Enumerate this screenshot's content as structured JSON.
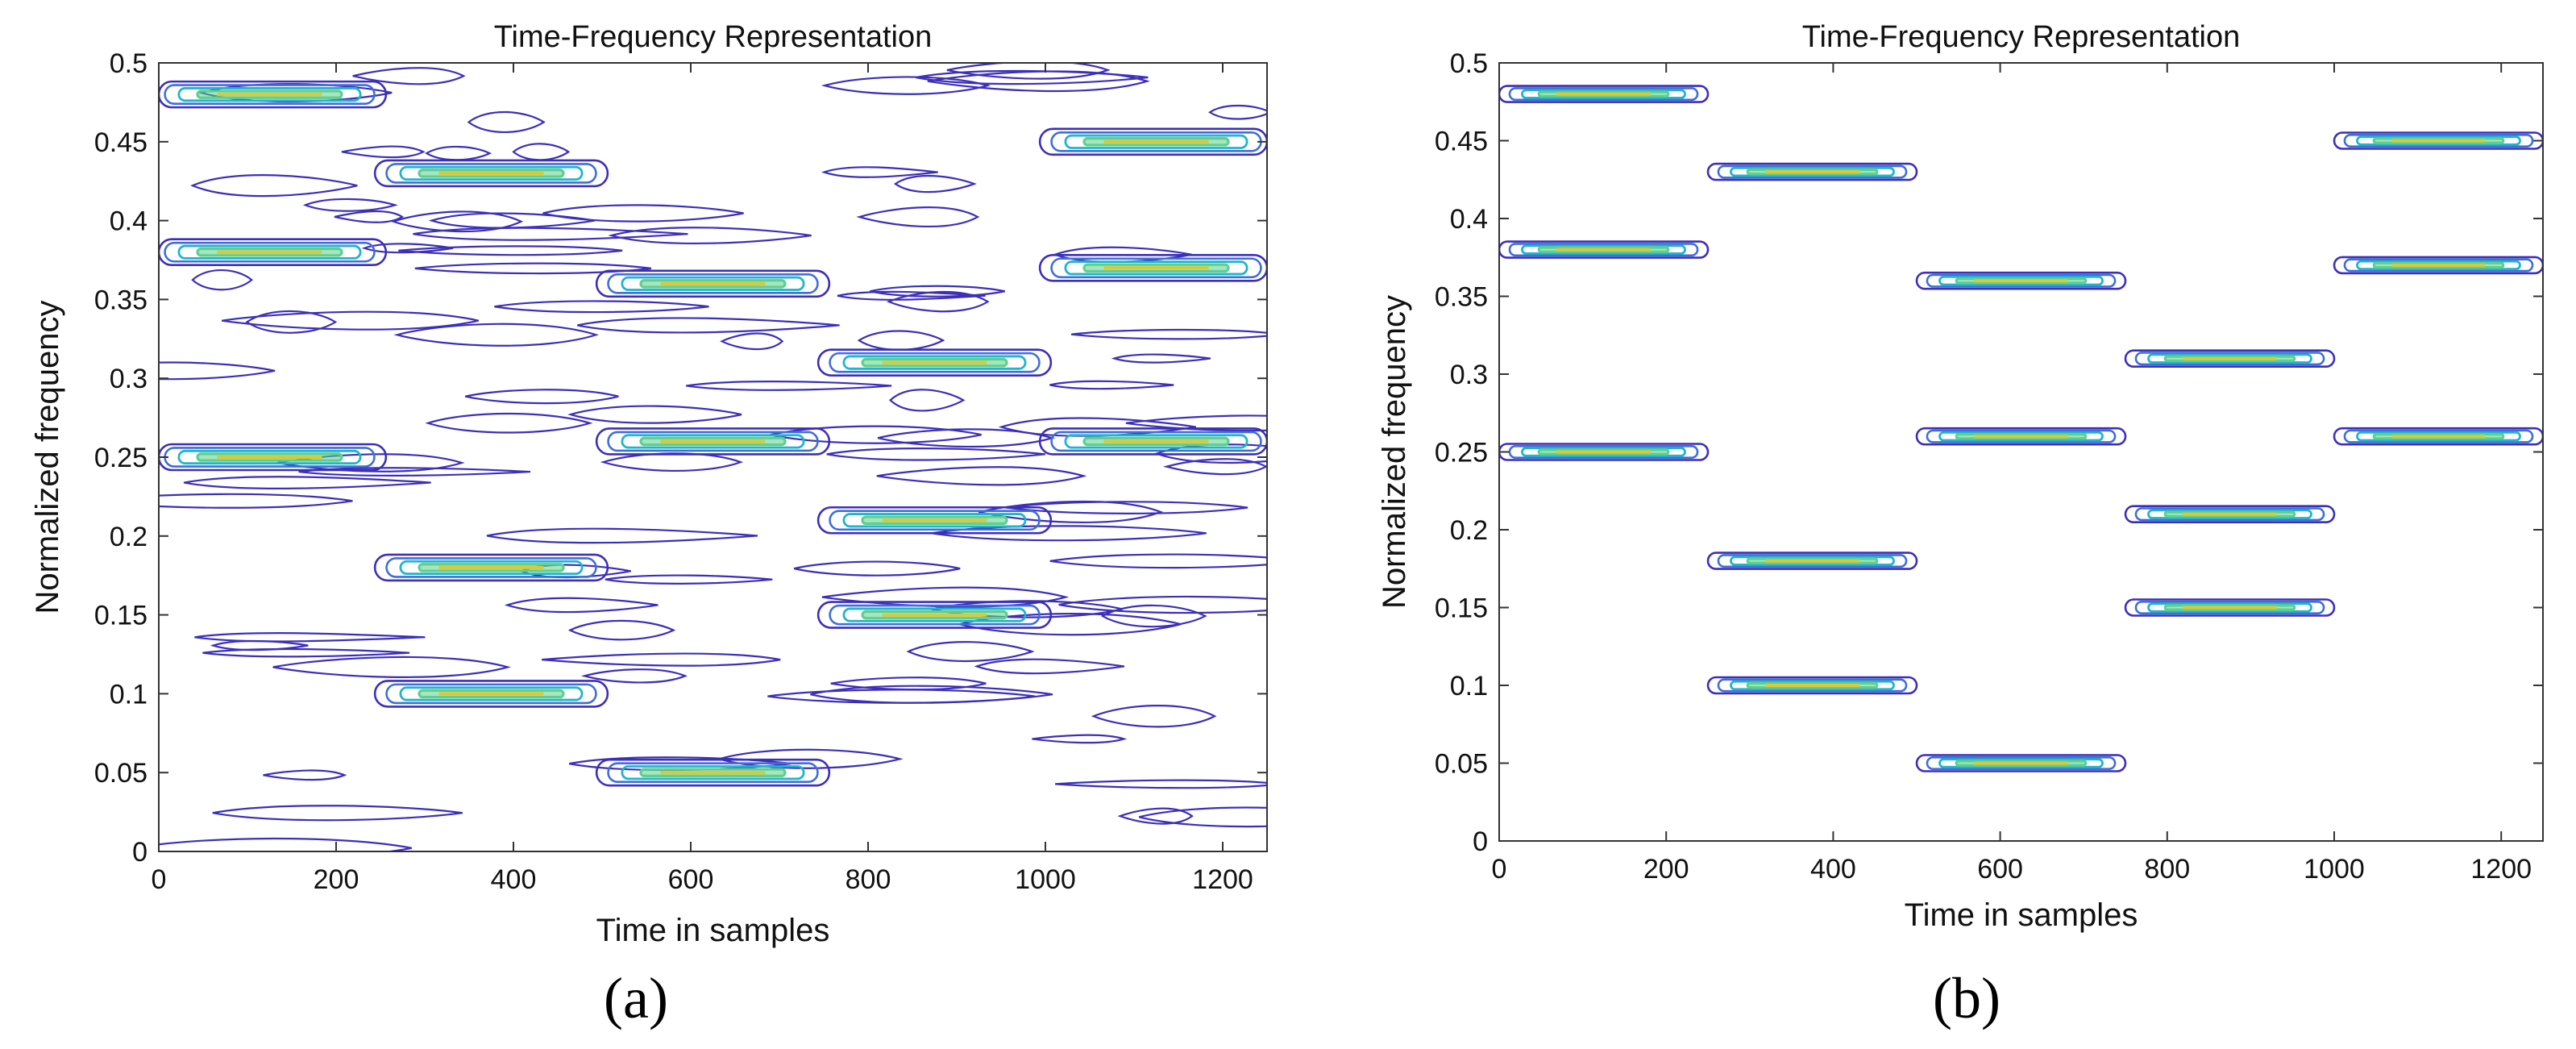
{
  "colors": {
    "contour_outer": "#3c2fb8",
    "contour_mid": "#3f6fd6",
    "contour_inner": "#1fb5cc",
    "contour_core": "#5fcf8e",
    "contour_peak": "#d9c83a",
    "axis": "#333333"
  },
  "chart_data": [
    {
      "type": "contour",
      "panel_label": "(a)",
      "title": "Time-Frequency Representation",
      "xlabel": "Time in samples",
      "ylabel": "Normalized frequency",
      "xlim": [
        0,
        1250
      ],
      "ylim": [
        0,
        0.5
      ],
      "xticks": [
        0,
        200,
        400,
        600,
        800,
        1000,
        1200
      ],
      "yticks": [
        0,
        0.05,
        0.1,
        0.15,
        0.2,
        0.25,
        0.3,
        0.35,
        0.4,
        0.45,
        0.5
      ],
      "interference_terms": true,
      "atoms": [
        {
          "t_start": 0,
          "t_end": 250,
          "freq": 0.48
        },
        {
          "t_start": 0,
          "t_end": 250,
          "freq": 0.38
        },
        {
          "t_start": 0,
          "t_end": 250,
          "freq": 0.25
        },
        {
          "t_start": 250,
          "t_end": 500,
          "freq": 0.43
        },
        {
          "t_start": 250,
          "t_end": 500,
          "freq": 0.18
        },
        {
          "t_start": 250,
          "t_end": 500,
          "freq": 0.1
        },
        {
          "t_start": 500,
          "t_end": 750,
          "freq": 0.36
        },
        {
          "t_start": 500,
          "t_end": 750,
          "freq": 0.26
        },
        {
          "t_start": 500,
          "t_end": 750,
          "freq": 0.05
        },
        {
          "t_start": 750,
          "t_end": 1000,
          "freq": 0.31
        },
        {
          "t_start": 750,
          "t_end": 1000,
          "freq": 0.21
        },
        {
          "t_start": 750,
          "t_end": 1000,
          "freq": 0.15
        },
        {
          "t_start": 1000,
          "t_end": 1250,
          "freq": 0.45
        },
        {
          "t_start": 1000,
          "t_end": 1250,
          "freq": 0.37
        },
        {
          "t_start": 1000,
          "t_end": 1250,
          "freq": 0.26
        }
      ]
    },
    {
      "type": "contour",
      "panel_label": "(b)",
      "title": "Time-Frequency Representation",
      "xlabel": "Time in samples",
      "ylabel": "Normalized frequency",
      "xlim": [
        0,
        1250
      ],
      "ylim": [
        0,
        0.5
      ],
      "xticks": [
        0,
        200,
        400,
        600,
        800,
        1000,
        1200
      ],
      "yticks": [
        0,
        0.05,
        0.1,
        0.15,
        0.2,
        0.25,
        0.3,
        0.35,
        0.4,
        0.45,
        0.5
      ],
      "interference_terms": false,
      "atoms": [
        {
          "t_start": 0,
          "t_end": 250,
          "freq": 0.48
        },
        {
          "t_start": 0,
          "t_end": 250,
          "freq": 0.38
        },
        {
          "t_start": 0,
          "t_end": 250,
          "freq": 0.25
        },
        {
          "t_start": 250,
          "t_end": 500,
          "freq": 0.43
        },
        {
          "t_start": 250,
          "t_end": 500,
          "freq": 0.18
        },
        {
          "t_start": 250,
          "t_end": 500,
          "freq": 0.1
        },
        {
          "t_start": 500,
          "t_end": 750,
          "freq": 0.36
        },
        {
          "t_start": 500,
          "t_end": 750,
          "freq": 0.26
        },
        {
          "t_start": 500,
          "t_end": 750,
          "freq": 0.05
        },
        {
          "t_start": 750,
          "t_end": 1000,
          "freq": 0.31
        },
        {
          "t_start": 750,
          "t_end": 1000,
          "freq": 0.21
        },
        {
          "t_start": 750,
          "t_end": 1000,
          "freq": 0.15
        },
        {
          "t_start": 1000,
          "t_end": 1250,
          "freq": 0.45
        },
        {
          "t_start": 1000,
          "t_end": 1250,
          "freq": 0.37
        },
        {
          "t_start": 1000,
          "t_end": 1250,
          "freq": 0.26
        }
      ]
    }
  ]
}
